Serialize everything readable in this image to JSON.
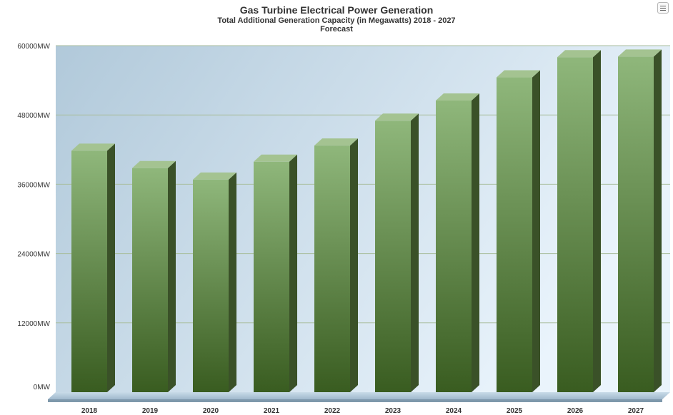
{
  "chart_data": {
    "type": "bar",
    "title": "Gas Turbine Electrical Power Generation",
    "subtitle": "Total Additional Generation Capacity (in Megawatts) 2018 - 2027",
    "subtitle2": "Forecast",
    "categories": [
      "2018",
      "2019",
      "2020",
      "2021",
      "2022",
      "2023",
      "2024",
      "2025",
      "2026",
      "2027"
    ],
    "values": [
      41800,
      38800,
      36800,
      39900,
      42700,
      47000,
      50500,
      54500,
      58000,
      58100
    ],
    "ylim": [
      0,
      60000
    ],
    "yticks": [
      0,
      12000,
      24000,
      36000,
      48000,
      60000
    ],
    "ytick_labels": [
      "0MW",
      "12000MW",
      "24000MW",
      "36000MW",
      "48000MW",
      "60000MW"
    ],
    "xlabel": "",
    "ylabel": "",
    "grid": true,
    "legend": "none",
    "bar_color": "#4f7a35",
    "colors": {
      "bar_front_top": "#8db579",
      "bar_front_bottom": "#3a5d21",
      "bar_side": "#3a5128",
      "bar_top": "#a4c391",
      "plot_bg_left": "#b1c9da",
      "plot_bg_right": "#e8f3fb",
      "gridline": "#a9be9d"
    }
  },
  "menu": {
    "icon": "menu-icon"
  }
}
